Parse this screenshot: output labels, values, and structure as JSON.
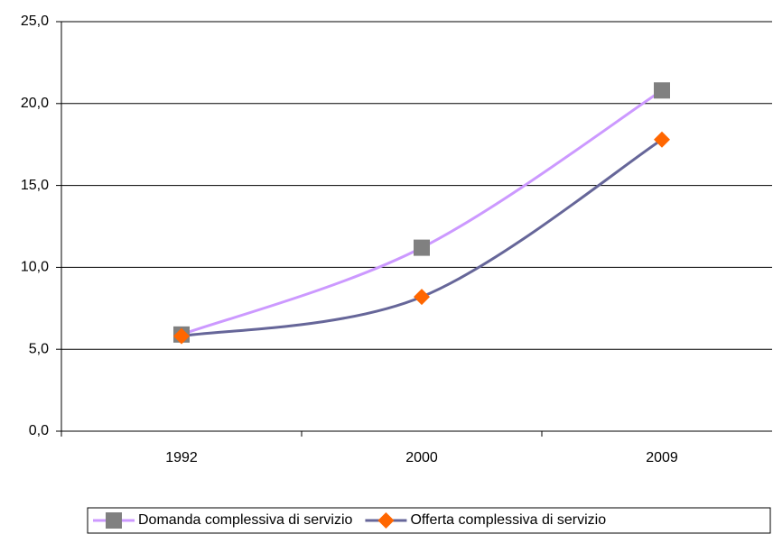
{
  "chart_data": {
    "type": "line",
    "categories": [
      "1992",
      "2000",
      "2009"
    ],
    "series": [
      {
        "name": "Domanda complessiva di servizio",
        "color": "#cc99ff",
        "marker": "square",
        "marker_color": "#808080",
        "values": [
          5.9,
          11.2,
          20.8
        ]
      },
      {
        "name": "Offerta complessiva di servizio",
        "color": "#666699",
        "marker": "diamond",
        "marker_color": "#ff6600",
        "values": [
          5.8,
          8.2,
          17.8
        ]
      }
    ],
    "ylim": [
      0,
      25
    ],
    "yticks": [
      {
        "value": 0,
        "label": "0,0"
      },
      {
        "value": 5,
        "label": "5,0"
      },
      {
        "value": 10,
        "label": "10,0"
      },
      {
        "value": 15,
        "label": "15,0"
      },
      {
        "value": 20,
        "label": "20,0"
      },
      {
        "value": 25,
        "label": "25,0"
      }
    ],
    "grid": true,
    "legend": "bottom"
  }
}
